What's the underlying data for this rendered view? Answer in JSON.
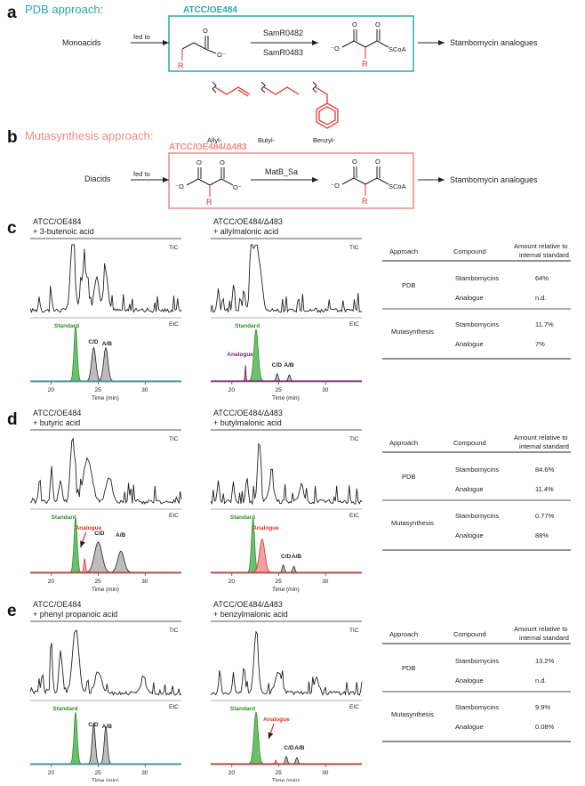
{
  "colors": {
    "teal": "#2aa8a8",
    "pink": "#f08a8a",
    "red": "#e0302a",
    "green": "#2f8f2f",
    "green_fill": "#6cbf6c",
    "grey_fill": "#bdbdbd",
    "red_fill": "#f2a0a0",
    "purple": "#7a1f6e"
  },
  "panel_a": {
    "letter": "a",
    "approach": "PDB approach:",
    "strain": "ATCC/OE484",
    "input": "Monoacids",
    "fed": "fed to",
    "enzyme1": "SamR0482",
    "enzyme2": "SamR0483",
    "product_label": "SCoA",
    "r_label": "R",
    "output": "Stambomycin analogues",
    "side_chains": [
      "Allyl-",
      "Butyl-",
      "Benzyl-"
    ]
  },
  "panel_b": {
    "letter": "b",
    "approach": "Mutasynthesis approach:",
    "strain": "ATCC/OE484/Δ483",
    "input": "Diacids",
    "fed": "fed to",
    "enzyme": "MatB_Sa",
    "product_label": "SCoA",
    "r_label": "R",
    "output": "Stambomycin analogues"
  },
  "common": {
    "tic": "TIC",
    "eic": "EIC",
    "xaxis_title": "Time (min)",
    "x_ticks": [
      "20",
      "25",
      "30"
    ],
    "standard": "Standard",
    "analogue": "Analogue",
    "cd": "C/D",
    "ab": "A/B",
    "table_headers": [
      "Approach",
      "Compound",
      "Amount relative to internal standard"
    ],
    "approaches": [
      "PDB",
      "Mutasynthesis"
    ],
    "compounds": [
      "Stambomycins",
      "Analogue"
    ]
  },
  "panels": [
    {
      "letter": "c",
      "left_title": [
        "ATCC/OE484",
        "+ 3-butenoic acid"
      ],
      "right_title": [
        "ATCC/OE484/Δ483",
        "+ allylmalonic acid"
      ],
      "values": [
        "64%",
        "n.d.",
        "11.7%",
        "7%"
      ]
    },
    {
      "letter": "d",
      "left_title": [
        "ATCC/OE484",
        "+ butyric acid"
      ],
      "right_title": [
        "ATCC/OE484/Δ483",
        "+ butylmalonic acid"
      ],
      "values": [
        "84.6%",
        "11.4%",
        "0.77%",
        "88%"
      ]
    },
    {
      "letter": "e",
      "left_title": [
        "ATCC/OE484",
        "+ phenyl propanoic acid"
      ],
      "right_title": [
        "ATCC/OE484/Δ483",
        "+ benzylmalonic acid"
      ],
      "values": [
        "13.2%",
        "n.d.",
        "9.9%",
        "0.08%"
      ]
    }
  ]
}
